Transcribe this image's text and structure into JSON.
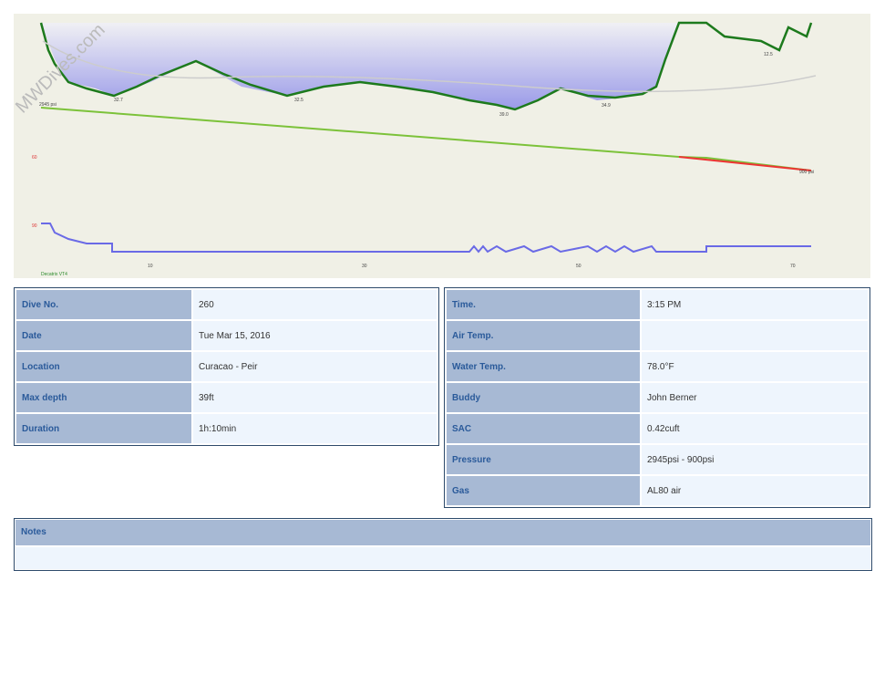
{
  "profile": {
    "watermark": "MWDives.com",
    "start_pressure": "2945 psi",
    "end_pressure": "900 psi",
    "depth_labels": [
      "32.7",
      "32.5",
      "39.0",
      "34.9",
      "12.5"
    ],
    "y_labels": [
      "60",
      "90"
    ],
    "x_ticks": [
      "10",
      "30",
      "50",
      "70"
    ],
    "footer": "Decatrix VT4"
  },
  "dive_info": {
    "rows": [
      {
        "label": "Dive No.",
        "value": "260"
      },
      {
        "label": "Date",
        "value": "Tue Mar 15, 2016"
      },
      {
        "label": "Location",
        "value": "Curacao - Peir"
      },
      {
        "label": "Max depth",
        "value": "39ft"
      },
      {
        "label": "Duration",
        "value": "1h:10min"
      }
    ]
  },
  "conditions": {
    "rows": [
      {
        "label": "Time.",
        "value": "3:15 PM"
      },
      {
        "label": "Air Temp."
      },
      {
        "label": "Water Temp.",
        "value": "78.0°F"
      },
      {
        "label": "Buddy",
        "value": "John Berner"
      },
      {
        "label": "SAC",
        "value": "0.42cuft"
      },
      {
        "label": "Pressure",
        "value": "2945psi - 900psi"
      },
      {
        "label": "Gas",
        "value": "AL80 air"
      }
    ]
  },
  "notes": {
    "title": "Notes"
  }
}
